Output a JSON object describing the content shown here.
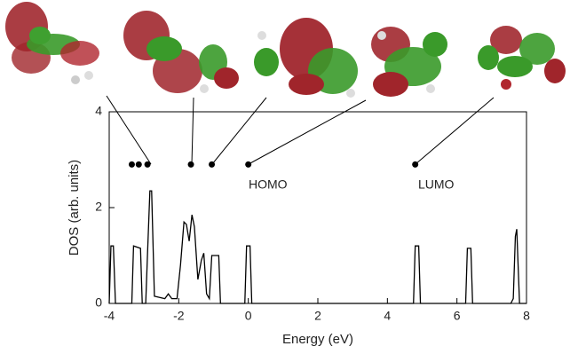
{
  "chart_data": {
    "type": "line",
    "xlabel": "Energy (eV)",
    "ylabel": "DOS (arb. units)",
    "xlim": [
      -4,
      8
    ],
    "ylim": [
      0,
      4
    ],
    "xticks": [
      -4,
      -2,
      0,
      2,
      4,
      6,
      8
    ],
    "yticks": [
      0,
      2,
      4
    ],
    "series": [
      {
        "color": "#000000",
        "x": [
          -4.0,
          -3.95,
          -3.88,
          -3.82,
          -3.75,
          -3.35,
          -3.3,
          -3.1,
          -3.05,
          -2.95,
          -2.9,
          -2.83,
          -2.78,
          -2.7,
          -2.4,
          -2.3,
          -2.2,
          -2.05,
          -1.95,
          -1.85,
          -1.78,
          -1.7,
          -1.62,
          -1.55,
          -1.45,
          -1.35,
          -1.28,
          -1.2,
          -1.12,
          -1.05,
          -0.95,
          -0.85,
          -0.8,
          -0.1,
          -0.05,
          0.05,
          0.1,
          4.75,
          4.8,
          4.9,
          4.95,
          6.25,
          6.3,
          6.4,
          6.45,
          7.55,
          7.62,
          7.68,
          7.72,
          7.8,
          8.0
        ],
        "values": [
          0,
          1.2,
          1.2,
          0,
          0,
          0,
          1.2,
          1.15,
          0,
          0,
          1.0,
          2.35,
          2.35,
          0.15,
          0.1,
          0.2,
          0.1,
          0.1,
          0.8,
          1.7,
          1.65,
          1.3,
          1.85,
          1.6,
          0.5,
          0.9,
          1.05,
          0.2,
          0.1,
          1.0,
          1.0,
          1.0,
          0,
          0,
          1.2,
          1.2,
          0,
          0,
          1.2,
          1.2,
          0,
          0,
          1.15,
          1.15,
          0,
          0,
          0.1,
          1.4,
          1.55,
          0,
          0
        ]
      }
    ],
    "markers": {
      "color": "#000000",
      "x": [
        -3.35,
        -3.15,
        -2.9,
        -1.65,
        -1.05,
        0,
        4.8
      ],
      "y": [
        2.9,
        2.9,
        2.9,
        2.9,
        2.9,
        2.9,
        2.9
      ]
    },
    "annotations": [
      "HOMO",
      "LUMO"
    ]
  }
}
